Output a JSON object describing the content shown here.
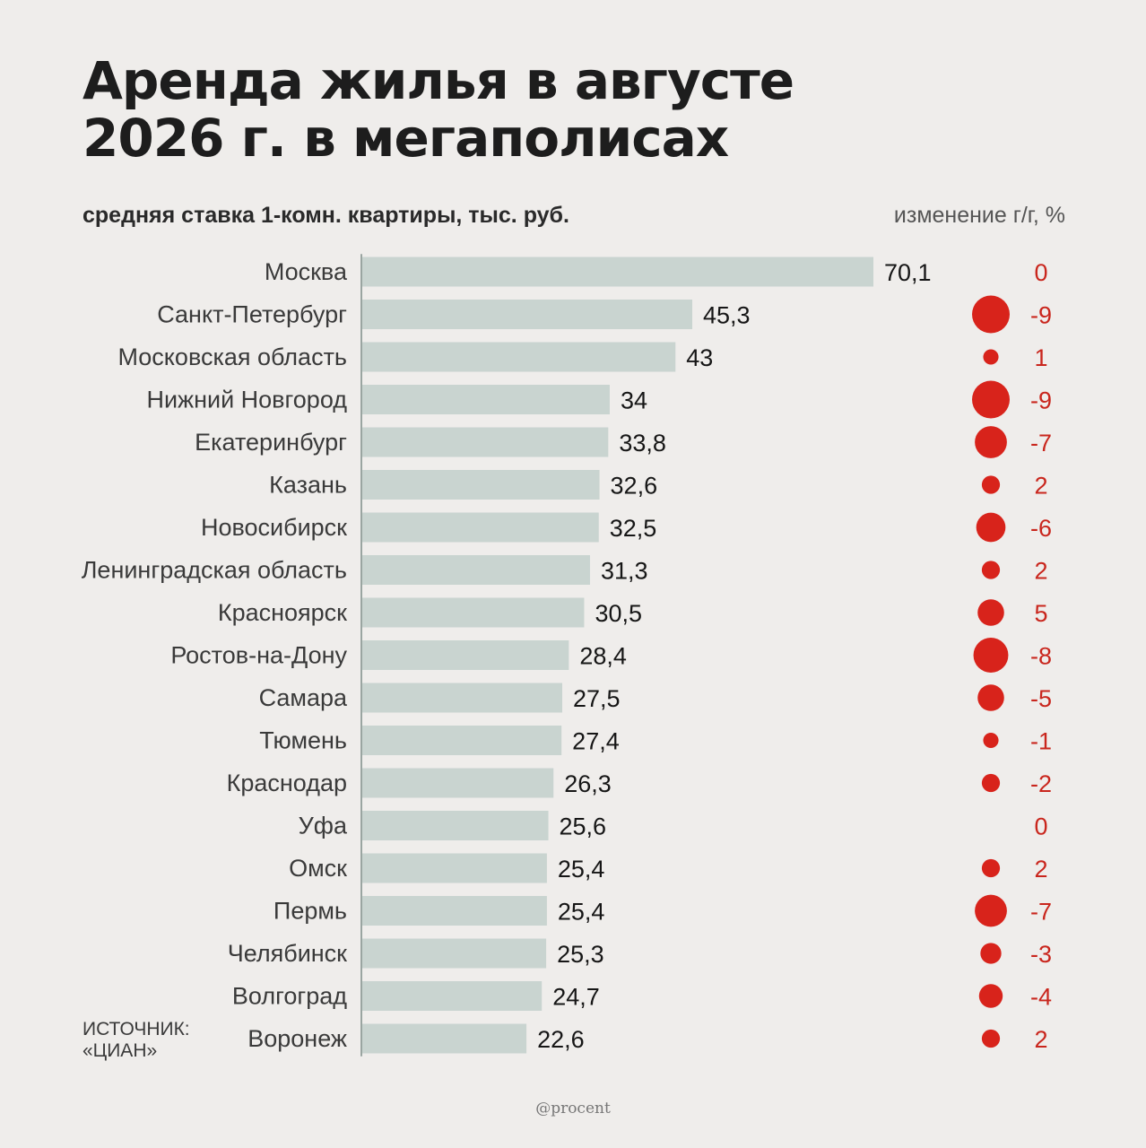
{
  "title_lines": [
    "Аренда жилья в августе",
    "2026 г. в мегаполисах"
  ],
  "subtitle": "средняя ставка 1-комн. квартиры, тыс. руб.",
  "change_header": "изменение г/г, %",
  "source_lines": [
    "ИСТОЧНИК:",
    "«ЦИАН»"
  ],
  "credit": "@procent",
  "colors": {
    "bar": "#c9d4d0",
    "dot": "#d8231b",
    "change_text": "#c9261d",
    "axis": "#9aa5a1"
  },
  "chart_data": {
    "type": "bar",
    "orientation": "horizontal",
    "title": "Аренда жилья в августе 2026 г. в мегаполисах",
    "xlabel": "средняя ставка 1-комн. квартиры, тыс. руб.",
    "categories": [
      "Москва",
      "Санкт-Петербург",
      "Московская область",
      "Нижний Новгород",
      "Екатеринбург",
      "Казань",
      "Новосибирск",
      "Ленинградская область",
      "Красноярск",
      "Ростов-на-Дону",
      "Самара",
      "Тюмень",
      "Краснодар",
      "Уфа",
      "Омск",
      "Пермь",
      "Челябинск",
      "Волгоград",
      "Воронеж"
    ],
    "values": [
      70.1,
      45.3,
      43,
      34,
      33.8,
      32.6,
      32.5,
      31.3,
      30.5,
      28.4,
      27.5,
      27.4,
      26.3,
      25.6,
      25.4,
      25.4,
      25.3,
      24.7,
      22.6
    ],
    "value_labels": [
      "70,1",
      "45,3",
      "43",
      "34",
      "33,8",
      "32,6",
      "32,5",
      "31,3",
      "30,5",
      "28,4",
      "27,5",
      "27,4",
      "26,3",
      "25,6",
      "25,4",
      "25,4",
      "25,3",
      "24,7",
      "22,6"
    ],
    "change": [
      0,
      -9,
      1,
      -9,
      -7,
      2,
      -6,
      2,
      5,
      -8,
      -5,
      -1,
      -2,
      0,
      2,
      -7,
      -3,
      -4,
      2
    ],
    "change_labels": [
      "0",
      "-9",
      "1",
      "-9",
      "-7",
      "2",
      "-6",
      "2",
      "5",
      "-8",
      "-5",
      "-1",
      "-2",
      "0",
      "2",
      "-7",
      "-3",
      "-4",
      "2"
    ],
    "xlim": [
      0,
      70.1
    ],
    "grid": false,
    "legend": "none"
  }
}
